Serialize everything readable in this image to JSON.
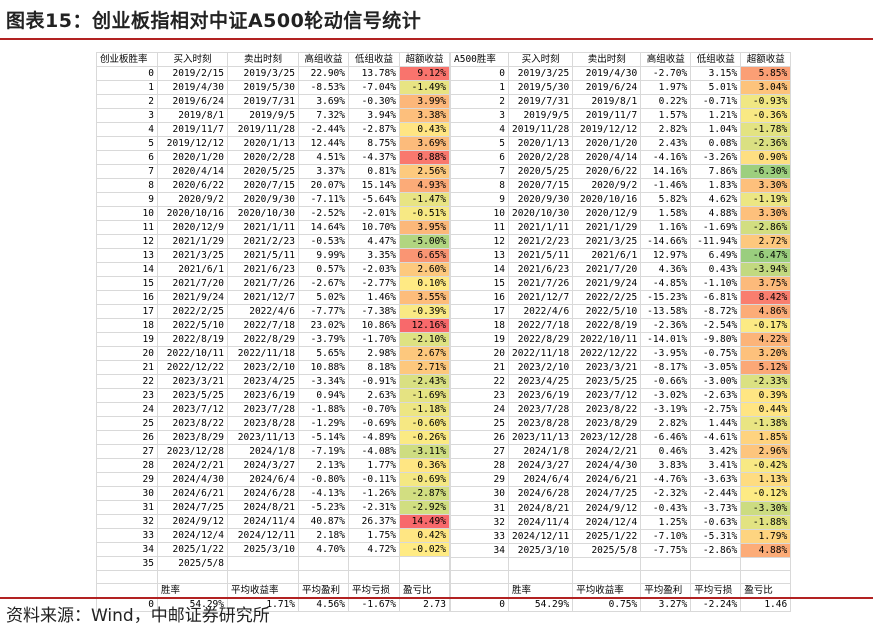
{
  "title": "图表15：创业板指相对中证A500轮动信号统计",
  "source": "资料来源：Wind，中邮证券研究所",
  "left": {
    "headers": [
      "创业板胜率",
      "买入时刻",
      "卖出时刻",
      "高组收益",
      "低组收益",
      "超额收益"
    ],
    "rows": [
      [
        "0",
        "2019/2/15",
        "2019/3/25",
        "22.90%",
        "13.78%",
        "9.12%"
      ],
      [
        "1",
        "2019/4/30",
        "2019/5/30",
        "-8.53%",
        "-7.04%",
        "-1.49%"
      ],
      [
        "2",
        "2019/6/24",
        "2019/7/31",
        "3.69%",
        "-0.30%",
        "3.99%"
      ],
      [
        "3",
        "2019/8/1",
        "2019/9/5",
        "7.32%",
        "3.94%",
        "3.38%"
      ],
      [
        "4",
        "2019/11/7",
        "2019/11/28",
        "-2.44%",
        "-2.87%",
        "0.43%"
      ],
      [
        "5",
        "2019/12/12",
        "2020/1/13",
        "12.44%",
        "8.75%",
        "3.69%"
      ],
      [
        "6",
        "2020/1/20",
        "2020/2/28",
        "4.51%",
        "-4.37%",
        "8.88%"
      ],
      [
        "7",
        "2020/4/14",
        "2020/5/25",
        "3.37%",
        "0.81%",
        "2.56%"
      ],
      [
        "8",
        "2020/6/22",
        "2020/7/15",
        "20.07%",
        "15.14%",
        "4.93%"
      ],
      [
        "9",
        "2020/9/2",
        "2020/9/30",
        "-7.11%",
        "-5.64%",
        "-1.47%"
      ],
      [
        "10",
        "2020/10/16",
        "2020/10/30",
        "-2.52%",
        "-2.01%",
        "-0.51%"
      ],
      [
        "11",
        "2020/12/9",
        "2021/1/11",
        "14.64%",
        "10.70%",
        "3.95%"
      ],
      [
        "12",
        "2021/1/29",
        "2021/2/23",
        "-0.53%",
        "4.47%",
        "-5.00%"
      ],
      [
        "13",
        "2021/3/25",
        "2021/5/11",
        "9.99%",
        "3.35%",
        "6.65%"
      ],
      [
        "14",
        "2021/6/1",
        "2021/6/23",
        "0.57%",
        "-2.03%",
        "2.60%"
      ],
      [
        "15",
        "2021/7/20",
        "2021/7/26",
        "-2.67%",
        "-2.77%",
        "0.10%"
      ],
      [
        "16",
        "2021/9/24",
        "2021/12/7",
        "5.02%",
        "1.46%",
        "3.55%"
      ],
      [
        "17",
        "2022/2/25",
        "2022/4/6",
        "-7.77%",
        "-7.38%",
        "-0.39%"
      ],
      [
        "18",
        "2022/5/10",
        "2022/7/18",
        "23.02%",
        "10.86%",
        "12.16%"
      ],
      [
        "19",
        "2022/8/19",
        "2022/8/29",
        "-3.79%",
        "-1.70%",
        "-2.10%"
      ],
      [
        "20",
        "2022/10/11",
        "2022/11/18",
        "5.65%",
        "2.98%",
        "2.67%"
      ],
      [
        "21",
        "2022/12/22",
        "2023/2/10",
        "10.88%",
        "8.18%",
        "2.71%"
      ],
      [
        "22",
        "2023/3/21",
        "2023/4/25",
        "-3.34%",
        "-0.91%",
        "-2.43%"
      ],
      [
        "23",
        "2023/5/25",
        "2023/6/19",
        "0.94%",
        "2.63%",
        "-1.69%"
      ],
      [
        "24",
        "2023/7/12",
        "2023/7/28",
        "-1.88%",
        "-0.70%",
        "-1.18%"
      ],
      [
        "25",
        "2023/8/22",
        "2023/8/28",
        "-1.29%",
        "-0.69%",
        "-0.60%"
      ],
      [
        "26",
        "2023/8/29",
        "2023/11/13",
        "-5.14%",
        "-4.89%",
        "-0.26%"
      ],
      [
        "27",
        "2023/12/28",
        "2024/1/8",
        "-7.19%",
        "-4.08%",
        "-3.11%"
      ],
      [
        "28",
        "2024/2/21",
        "2024/3/27",
        "2.13%",
        "1.77%",
        "0.36%"
      ],
      [
        "29",
        "2024/4/30",
        "2024/6/4",
        "-0.80%",
        "-0.11%",
        "-0.69%"
      ],
      [
        "30",
        "2024/6/21",
        "2024/6/28",
        "-4.13%",
        "-1.26%",
        "-2.87%"
      ],
      [
        "31",
        "2024/7/25",
        "2024/8/21",
        "-5.23%",
        "-2.31%",
        "-2.92%"
      ],
      [
        "32",
        "2024/9/12",
        "2024/11/4",
        "40.87%",
        "26.37%",
        "14.49%"
      ],
      [
        "33",
        "2024/12/4",
        "2024/12/11",
        "2.18%",
        "1.75%",
        "0.42%"
      ],
      [
        "34",
        "2025/1/22",
        "2025/3/10",
        "4.70%",
        "4.72%",
        "-0.02%"
      ],
      [
        "35",
        "2025/5/8",
        "",
        "",
        "",
        ""
      ]
    ],
    "summary_headers": [
      "胜率",
      "平均收益率",
      "平均盈利",
      "平均亏损",
      "盈亏比"
    ],
    "summary": [
      "0",
      "54.29%",
      "1.71%",
      "4.56%",
      "-1.67%",
      "2.73"
    ]
  },
  "right": {
    "headers": [
      "A500胜率",
      "买入时刻",
      "卖出时刻",
      "高组收益",
      "低组收益",
      "超额收益"
    ],
    "rows": [
      [
        "0",
        "2019/3/25",
        "2019/4/30",
        "-2.70%",
        "3.15%",
        "5.85%"
      ],
      [
        "1",
        "2019/5/30",
        "2019/6/24",
        "1.97%",
        "5.01%",
        "3.04%"
      ],
      [
        "2",
        "2019/7/31",
        "2019/8/1",
        "0.22%",
        "-0.71%",
        "-0.93%"
      ],
      [
        "3",
        "2019/9/5",
        "2019/11/7",
        "1.57%",
        "1.21%",
        "-0.36%"
      ],
      [
        "4",
        "2019/11/28",
        "2019/12/12",
        "2.82%",
        "1.04%",
        "-1.78%"
      ],
      [
        "5",
        "2020/1/13",
        "2020/1/20",
        "2.43%",
        "0.08%",
        "-2.36%"
      ],
      [
        "6",
        "2020/2/28",
        "2020/4/14",
        "-4.16%",
        "-3.26%",
        "0.90%"
      ],
      [
        "7",
        "2020/5/25",
        "2020/6/22",
        "14.16%",
        "7.86%",
        "-6.30%"
      ],
      [
        "8",
        "2020/7/15",
        "2020/9/2",
        "-1.46%",
        "1.83%",
        "3.30%"
      ],
      [
        "9",
        "2020/9/30",
        "2020/10/16",
        "5.82%",
        "4.62%",
        "-1.19%"
      ],
      [
        "10",
        "2020/10/30",
        "2020/12/9",
        "1.58%",
        "4.88%",
        "3.30%"
      ],
      [
        "11",
        "2021/1/11",
        "2021/1/29",
        "1.16%",
        "-1.69%",
        "-2.86%"
      ],
      [
        "12",
        "2021/2/23",
        "2021/3/25",
        "-14.66%",
        "-11.94%",
        "2.72%"
      ],
      [
        "13",
        "2021/5/11",
        "2021/6/1",
        "12.97%",
        "6.49%",
        "-6.47%"
      ],
      [
        "14",
        "2021/6/23",
        "2021/7/20",
        "4.36%",
        "0.43%",
        "-3.94%"
      ],
      [
        "15",
        "2021/7/26",
        "2021/9/24",
        "-4.85%",
        "-1.10%",
        "3.75%"
      ],
      [
        "16",
        "2021/12/7",
        "2022/2/25",
        "-15.23%",
        "-6.81%",
        "8.42%"
      ],
      [
        "17",
        "2022/4/6",
        "2022/5/10",
        "-13.58%",
        "-8.72%",
        "4.86%"
      ],
      [
        "18",
        "2022/7/18",
        "2022/8/19",
        "-2.36%",
        "-2.54%",
        "-0.17%"
      ],
      [
        "19",
        "2022/8/29",
        "2022/10/11",
        "-14.01%",
        "-9.80%",
        "4.22%"
      ],
      [
        "20",
        "2022/11/18",
        "2022/12/22",
        "-3.95%",
        "-0.75%",
        "3.20%"
      ],
      [
        "21",
        "2023/2/10",
        "2023/3/21",
        "-8.17%",
        "-3.05%",
        "5.12%"
      ],
      [
        "22",
        "2023/4/25",
        "2023/5/25",
        "-0.66%",
        "-3.00%",
        "-2.33%"
      ],
      [
        "23",
        "2023/6/19",
        "2023/7/12",
        "-3.02%",
        "-2.63%",
        "0.39%"
      ],
      [
        "24",
        "2023/7/28",
        "2023/8/22",
        "-3.19%",
        "-2.75%",
        "0.44%"
      ],
      [
        "25",
        "2023/8/28",
        "2023/8/29",
        "2.82%",
        "1.44%",
        "-1.38%"
      ],
      [
        "26",
        "2023/11/13",
        "2023/12/28",
        "-6.46%",
        "-4.61%",
        "1.85%"
      ],
      [
        "27",
        "2024/1/8",
        "2024/2/21",
        "0.46%",
        "3.42%",
        "2.96%"
      ],
      [
        "28",
        "2024/3/27",
        "2024/4/30",
        "3.83%",
        "3.41%",
        "-0.42%"
      ],
      [
        "29",
        "2024/6/4",
        "2024/6/21",
        "-4.76%",
        "-3.63%",
        "1.13%"
      ],
      [
        "30",
        "2024/6/28",
        "2024/7/25",
        "-2.32%",
        "-2.44%",
        "-0.12%"
      ],
      [
        "31",
        "2024/8/21",
        "2024/9/12",
        "-0.43%",
        "-3.73%",
        "-3.30%"
      ],
      [
        "32",
        "2024/11/4",
        "2024/12/4",
        "1.25%",
        "-0.63%",
        "-1.88%"
      ],
      [
        "33",
        "2024/12/11",
        "2025/1/22",
        "-7.10%",
        "-5.31%",
        "1.79%"
      ],
      [
        "34",
        "2025/3/10",
        "2025/5/8",
        "-7.75%",
        "-2.86%",
        "4.88%"
      ]
    ],
    "summary_headers": [
      "胜率",
      "平均收益率",
      "平均盈利",
      "平均亏损",
      "盈亏比"
    ],
    "summary": [
      "0",
      "54.29%",
      "0.75%",
      "3.27%",
      "-2.24%",
      "1.46"
    ]
  }
}
